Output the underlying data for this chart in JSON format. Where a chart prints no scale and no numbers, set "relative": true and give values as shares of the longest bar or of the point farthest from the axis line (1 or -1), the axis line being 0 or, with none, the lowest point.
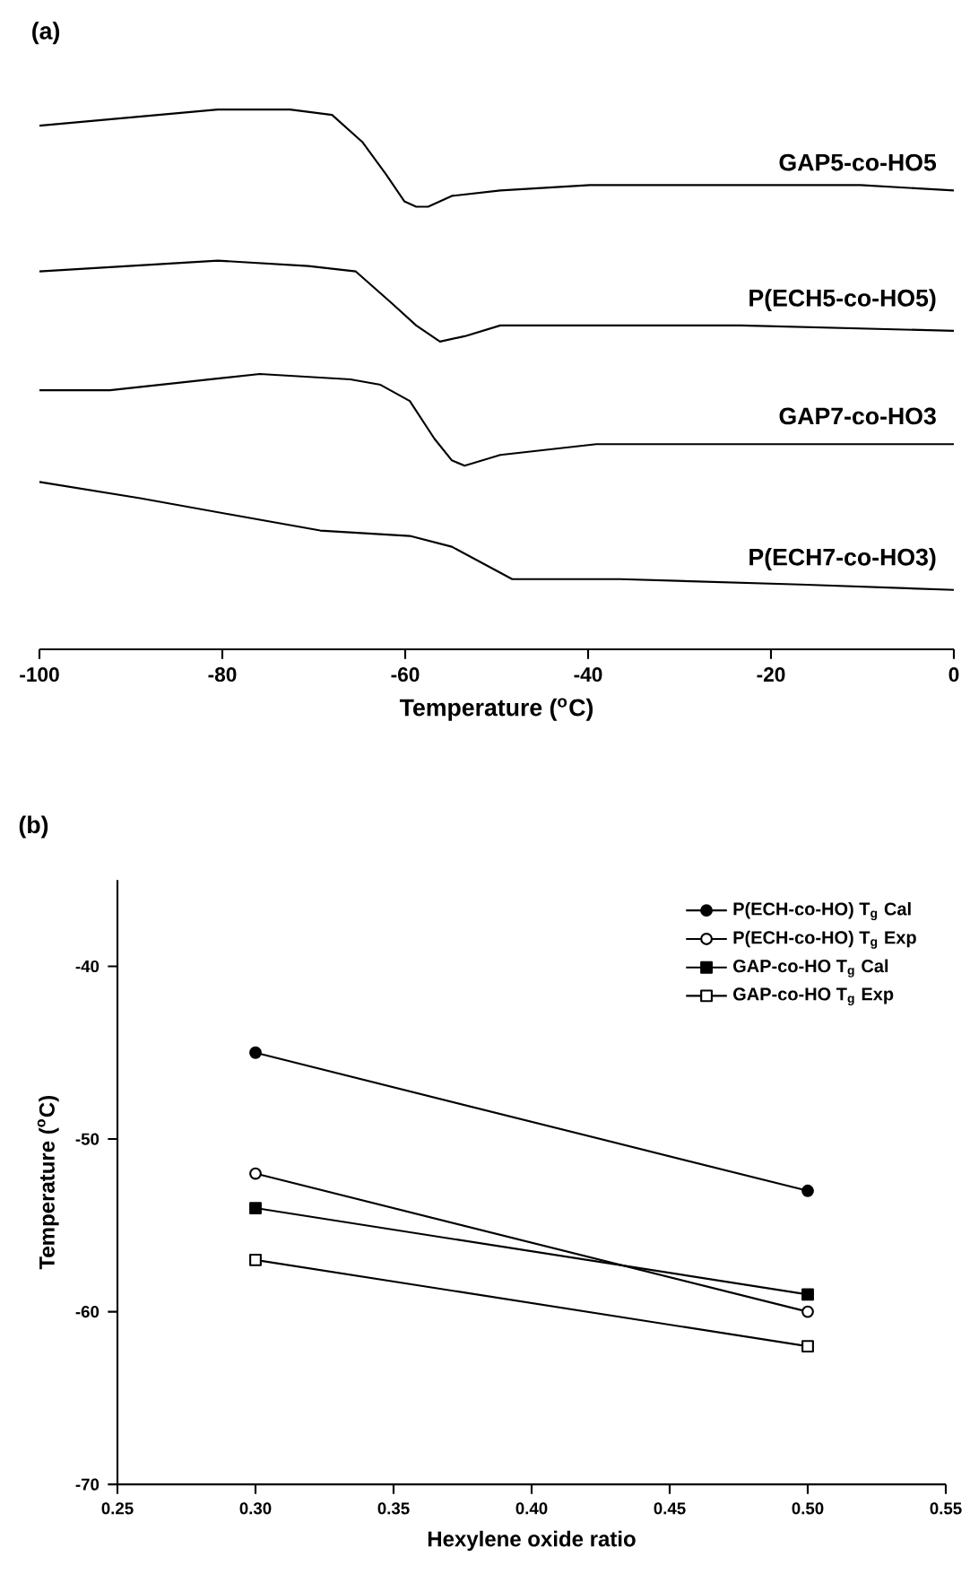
{
  "chart_data": [
    {
      "type": "line",
      "title": "(a)",
      "xlabel": "Temperature ($^{o}$C)",
      "relative": true,
      "marker": "none",
      "line_style": "solid",
      "xlim": [
        -100,
        0
      ],
      "xticks": [
        -100,
        -80,
        -60,
        -40,
        -20,
        0
      ],
      "series": [
        {
          "name": "GAP5-co-HO5",
          "color": "#000000",
          "x": [
            -100,
            -80.5,
            -72.6,
            -68.0,
            -64.7,
            -62.1,
            -60.1,
            -58.8,
            -57.5,
            -54.9,
            -49.6,
            -39.8,
            -23.3,
            -10.2,
            0
          ],
          "values": [
            0.97,
            1.0,
            1.0,
            0.99,
            0.94,
            0.88,
            0.83,
            0.82,
            0.82,
            0.84,
            0.85,
            0.86,
            0.86,
            0.86,
            0.85
          ]
        },
        {
          "name": "P(ECH5-co-HO5)",
          "color": "#000000",
          "x": [
            -100,
            -80.5,
            -70.6,
            -65.4,
            -61.4,
            -58.8,
            -56.2,
            -53.5,
            -49.6,
            -39.1,
            -23.3,
            0
          ],
          "values": [
            0.7,
            0.72,
            0.71,
            0.7,
            0.64,
            0.6,
            0.57,
            0.58,
            0.6,
            0.6,
            0.6,
            0.59
          ]
        },
        {
          "name": "GAP7-co-HO3",
          "color": "#000000",
          "x": [
            -100,
            -92.3,
            -75.9,
            -66.0,
            -62.7,
            -59.5,
            -56.8,
            -54.9,
            -53.5,
            -49.6,
            -39.1,
            -23.3,
            0
          ],
          "values": [
            0.48,
            0.48,
            0.51,
            0.5,
            0.49,
            0.46,
            0.39,
            0.35,
            0.34,
            0.36,
            0.38,
            0.38,
            0.38
          ]
        },
        {
          "name": "P(ECH7-co-HO3)",
          "color": "#000000",
          "x": [
            -100,
            -89.0,
            -79.2,
            -69.3,
            -59.5,
            -54.9,
            -51.6,
            -48.3,
            -36.5,
            -16.8,
            0
          ],
          "values": [
            0.31,
            0.28,
            0.25,
            0.22,
            0.21,
            0.19,
            0.16,
            0.13,
            0.13,
            0.12,
            0.11
          ]
        }
      ]
    },
    {
      "type": "line",
      "title": "(b)",
      "xlabel": "Hexylene oxide ratio",
      "ylabel": "Temperature ($^{o}$C)",
      "legend": "top right",
      "line_style": "solid",
      "xlim": [
        0.25,
        0.55
      ],
      "xticks": [
        {
          "value": 0.25,
          "label": "0.25"
        },
        {
          "value": 0.3,
          "label": "0.30"
        },
        {
          "value": 0.35,
          "label": "0.35"
        },
        {
          "value": 0.4,
          "label": "0.40"
        },
        {
          "value": 0.45,
          "label": "0.45"
        },
        {
          "value": 0.5,
          "label": "0.50"
        },
        {
          "value": 0.55,
          "label": "0.55"
        }
      ],
      "ylim": [
        -70,
        -35
      ],
      "yticks": [
        -70,
        -60,
        -50,
        -40
      ],
      "x": [
        0.3,
        0.5
      ],
      "series": [
        {
          "name": "P(ECH-co-HO) T$_{g}$ Cal",
          "color": "#000000",
          "marker": "circle",
          "values": [
            -45,
            -53
          ]
        },
        {
          "name": "P(ECH-co-HO) T$_{g}$ Exp",
          "color": "#000000",
          "marker": "circle-open",
          "values": [
            -52,
            -60
          ]
        },
        {
          "name": "GAP-co-HO T$_{g}$ Cal",
          "color": "#000000",
          "marker": "square",
          "values": [
            -54,
            -59
          ]
        },
        {
          "name": "GAP-co-HO T$_{g}$ Exp",
          "color": "#000000",
          "marker": "square-open",
          "values": [
            -57,
            -62
          ]
        }
      ]
    }
  ]
}
